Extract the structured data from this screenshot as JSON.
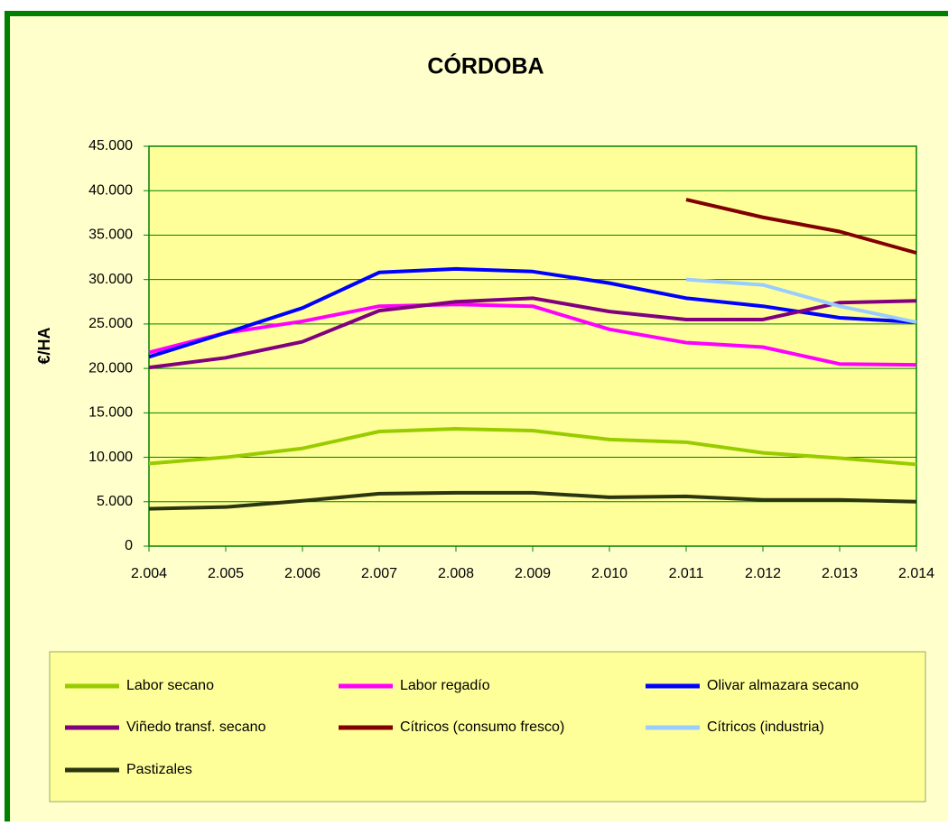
{
  "chart_data": {
    "type": "line",
    "title": "CÓRDOBA",
    "y_label": "€/HA",
    "categories": [
      "2.004",
      "2.005",
      "2.006",
      "2.007",
      "2.008",
      "2.009",
      "2.010",
      "2.011",
      "2.012",
      "2.013",
      "2.014"
    ],
    "series": [
      {
        "name": "Labor secano",
        "color": "#99cc00",
        "values": [
          9300,
          10000,
          11000,
          12900,
          13200,
          13000,
          12000,
          11700,
          10500,
          9900,
          9200
        ]
      },
      {
        "name": "Labor regadío",
        "color": "#ff00ff",
        "values": [
          21800,
          24000,
          25300,
          27000,
          27200,
          27000,
          24400,
          22900,
          22400,
          20500,
          20400
        ]
      },
      {
        "name": "Olivar almazara secano",
        "color": "#0000ff",
        "values": [
          21300,
          24000,
          26800,
          30800,
          31200,
          30900,
          29600,
          27900,
          27000,
          25700,
          25200
        ]
      },
      {
        "name": "Viñedo transf. secano",
        "color": "#800080",
        "values": [
          20100,
          21200,
          23000,
          26500,
          27500,
          27900,
          26400,
          25500,
          25500,
          27400,
          27600
        ]
      },
      {
        "name": "Cítricos (consumo fresco)",
        "color": "#800000",
        "values": [
          null,
          null,
          null,
          null,
          null,
          null,
          null,
          39000,
          37000,
          35400,
          33000
        ]
      },
      {
        "name": "Cítricos (industria)",
        "color": "#99ccff",
        "values": [
          null,
          null,
          null,
          null,
          null,
          null,
          null,
          30000,
          29400,
          27000,
          25200
        ]
      },
      {
        "name": "Pastizales",
        "color": "#2b3510",
        "values": [
          4200,
          4400,
          5100,
          5900,
          6000,
          6000,
          5500,
          5600,
          5200,
          5200,
          5000
        ]
      }
    ],
    "ylim": [
      0,
      45000
    ],
    "yticks": [
      0,
      {
        "value": 5000,
        "label": "5.000"
      },
      {
        "value": 10000,
        "label": "10.000"
      },
      {
        "value": 15000,
        "label": "15.000"
      },
      {
        "value": 20000,
        "label": "20.000"
      },
      {
        "value": 25000,
        "label": "25.000"
      },
      {
        "value": 30000,
        "label": "30.000"
      },
      {
        "value": 35000,
        "label": "35.000"
      },
      {
        "value": 40000,
        "label": "40.000"
      },
      {
        "value": 45000,
        "label": "45.000"
      }
    ],
    "grid": true
  }
}
